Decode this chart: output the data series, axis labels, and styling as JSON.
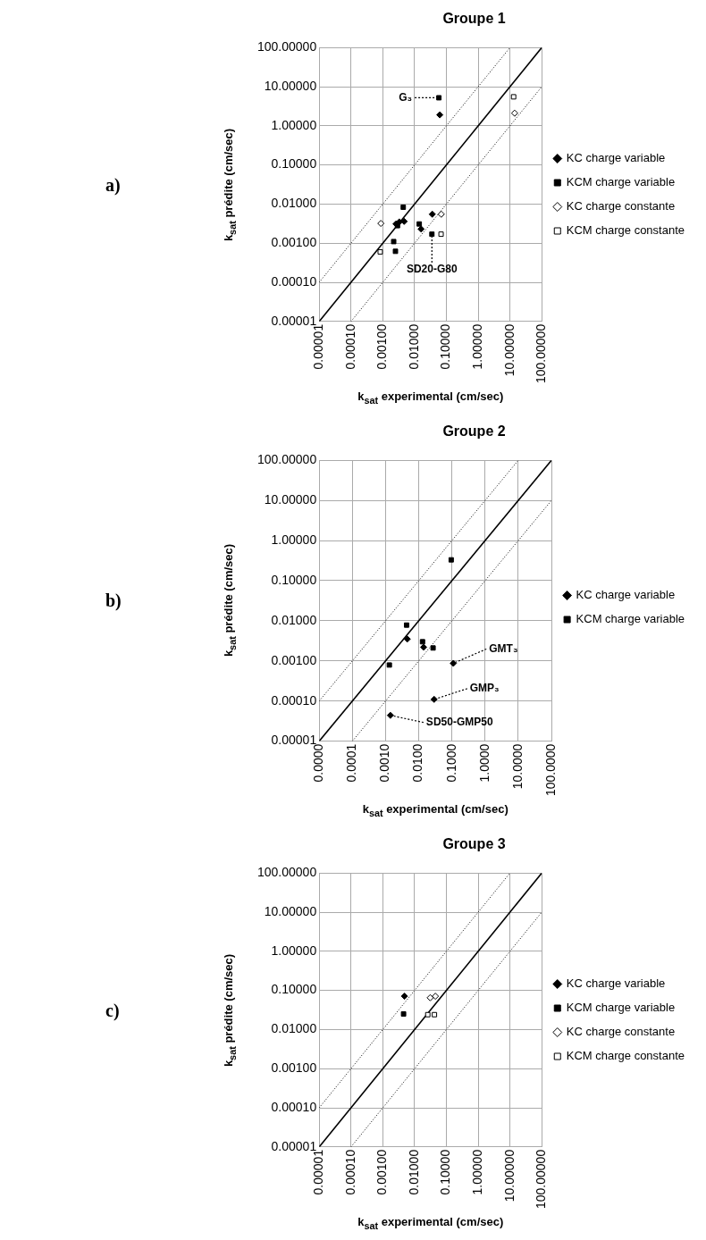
{
  "chart_data": [
    {
      "type": "scatter",
      "title": "Groupe 1",
      "xlabel": "k$_{sat}$ experimental (cm/sec)",
      "ylabel": "k$_{sat}$ prédite (cm/sec)",
      "log": "xy",
      "grid": true,
      "legend": "right",
      "xlim": [
        1e-05,
        100
      ],
      "ylim": [
        1e-05,
        100
      ],
      "xticks": [
        {
          "value": 1e-05,
          "label": "0.00001"
        },
        {
          "value": 0.0001,
          "label": "0.00010"
        },
        {
          "value": 0.001,
          "label": "0.00100"
        },
        {
          "value": 0.01,
          "label": "0.01000"
        },
        {
          "value": 0.1,
          "label": "0.10000"
        },
        {
          "value": 1,
          "label": "1.00000"
        },
        {
          "value": 10,
          "label": "10.00000"
        },
        {
          "value": 100,
          "label": "100.00000"
        }
      ],
      "yticks": [
        {
          "value": 1e-05,
          "label": "0.00001"
        },
        {
          "value": 0.0001,
          "label": "0.00010"
        },
        {
          "value": 0.001,
          "label": "0.00100"
        },
        {
          "value": 0.01,
          "label": "0.01000"
        },
        {
          "value": 0.1,
          "label": "0.10000"
        },
        {
          "value": 1,
          "label": "1.00000"
        },
        {
          "value": 10,
          "label": "10.00000"
        },
        {
          "value": 100,
          "label": "100.00000"
        }
      ],
      "series": [
        {
          "type": "line",
          "color": "#000000",
          "line_style": "solid",
          "marker": "none",
          "x": [
            1e-05,
            100
          ],
          "values": [
            1e-05,
            100
          ]
        },
        {
          "type": "line",
          "color": "#000000",
          "line_style": "dotted",
          "marker": "none",
          "x": [
            1e-05,
            10
          ],
          "values": [
            0.0001,
            100
          ]
        },
        {
          "type": "line",
          "color": "#000000",
          "line_style": "dotted",
          "marker": "none",
          "x": [
            0.0001,
            100
          ],
          "values": [
            1e-05,
            10
          ]
        },
        {
          "name": "KC charge variable",
          "color": "#000000",
          "marker": "diamond",
          "x": [
            0.0026,
            0.0033,
            0.0047,
            0.016,
            0.036,
            0.062
          ],
          "values": [
            0.0031,
            0.0035,
            0.0036,
            0.0023,
            0.0055,
            1.9
          ]
        },
        {
          "name": "KCM charge variable",
          "color": "#000000",
          "marker": "square",
          "x": [
            0.0044,
            0.0029,
            0.0022,
            0.0025,
            0.014,
            0.035,
            0.058
          ],
          "values": [
            0.0083,
            0.0028,
            0.0011,
            0.00062,
            0.0031,
            0.0017,
            5.2
          ]
        },
        {
          "name": "KC charge constante",
          "color": "#000000",
          "marker": "diamond-open",
          "x": [
            0.00087,
            0.069,
            14
          ],
          "values": [
            0.0032,
            0.0055,
            2.1
          ]
        },
        {
          "name": "KCM charge constante",
          "color": "#000000",
          "marker": "square-open",
          "x": [
            0.00083,
            0.068,
            13
          ],
          "values": [
            0.0006,
            0.0017,
            5.5
          ]
        }
      ],
      "annotations": [
        "a)",
        {
          "text": "G₃",
          "x": 0.058,
          "y": 5.2
        },
        {
          "text": "SD20-G80",
          "x": 0.035,
          "y": 0.0017
        }
      ]
    },
    {
      "type": "scatter",
      "title": "Groupe 2",
      "xlabel": "k$_{sat}$ experimental (cm/sec)",
      "ylabel": "k$_{sat}$ prédite (cm/sec)",
      "log": "xy",
      "grid": true,
      "legend": "right",
      "xlim": [
        1e-05,
        100
      ],
      "ylim": [
        1e-05,
        100
      ],
      "xticks": [
        {
          "value": 1e-05,
          "label": "0.0000"
        },
        {
          "value": 0.0001,
          "label": "0.0001"
        },
        {
          "value": 0.001,
          "label": "0.0010"
        },
        {
          "value": 0.01,
          "label": "0.0100"
        },
        {
          "value": 0.1,
          "label": "0.1000"
        },
        {
          "value": 1,
          "label": "1.0000"
        },
        {
          "value": 10,
          "label": "10.0000"
        },
        {
          "value": 100,
          "label": "100.0000"
        }
      ],
      "yticks": [
        {
          "value": 1e-05,
          "label": "0.00001"
        },
        {
          "value": 0.0001,
          "label": "0.00010"
        },
        {
          "value": 0.001,
          "label": "0.00100"
        },
        {
          "value": 0.01,
          "label": "0.01000"
        },
        {
          "value": 0.1,
          "label": "0.10000"
        },
        {
          "value": 1,
          "label": "1.00000"
        },
        {
          "value": 10,
          "label": "10.00000"
        },
        {
          "value": 100,
          "label": "100.00000"
        }
      ],
      "series": [
        {
          "type": "line",
          "color": "#000000",
          "line_style": "solid",
          "marker": "none",
          "x": [
            1e-05,
            100
          ],
          "values": [
            1e-05,
            100
          ]
        },
        {
          "type": "line",
          "color": "#000000",
          "line_style": "dotted",
          "marker": "none",
          "x": [
            1e-05,
            10
          ],
          "values": [
            0.0001,
            100
          ]
        },
        {
          "type": "line",
          "color": "#000000",
          "line_style": "dotted",
          "marker": "none",
          "x": [
            0.0001,
            100
          ],
          "values": [
            1e-05,
            10
          ]
        },
        {
          "name": "KC charge variable",
          "color": "#000000",
          "marker": "diamond",
          "x": [
            0.0045,
            0.014,
            0.11,
            0.029,
            0.0014
          ],
          "values": [
            0.0035,
            0.0022,
            0.00087,
            0.00011,
            4.4e-05
          ]
        },
        {
          "name": "KCM charge variable",
          "color": "#000000",
          "marker": "square",
          "x": [
            0.0043,
            0.0013,
            0.013,
            0.027,
            0.095
          ],
          "values": [
            0.0078,
            0.00079,
            0.003,
            0.0021,
            0.33
          ]
        }
      ],
      "annotations": [
        "b)",
        {
          "text": "GMT₃",
          "x": 0.11,
          "y": 0.00087
        },
        {
          "text": "GMP₃",
          "x": 0.029,
          "y": 0.00011
        },
        {
          "text": "SD50-GMP50",
          "x": 0.0014,
          "y": 4.4e-05
        }
      ]
    },
    {
      "type": "scatter",
      "title": "Groupe 3",
      "xlabel": "k$_{sat}$ experimental (cm/sec)",
      "ylabel": "k$_{sat}$ prédite (cm/sec)",
      "log": "xy",
      "grid": true,
      "legend": "right",
      "xlim": [
        1e-05,
        100
      ],
      "ylim": [
        1e-05,
        100
      ],
      "xticks": [
        {
          "value": 1e-05,
          "label": "0.00001"
        },
        {
          "value": 0.0001,
          "label": "0.00010"
        },
        {
          "value": 0.001,
          "label": "0.00100"
        },
        {
          "value": 0.01,
          "label": "0.01000"
        },
        {
          "value": 0.1,
          "label": "0.10000"
        },
        {
          "value": 1,
          "label": "1.00000"
        },
        {
          "value": 10,
          "label": "10.00000"
        },
        {
          "value": 100,
          "label": "100.00000"
        }
      ],
      "yticks": [
        {
          "value": 1e-05,
          "label": "0.00001"
        },
        {
          "value": 0.0001,
          "label": "0.00010"
        },
        {
          "value": 0.001,
          "label": "0.00100"
        },
        {
          "value": 0.01,
          "label": "0.01000"
        },
        {
          "value": 0.1,
          "label": "0.10000"
        },
        {
          "value": 1,
          "label": "1.00000"
        },
        {
          "value": 10,
          "label": "10.00000"
        },
        {
          "value": 100,
          "label": "100.00000"
        }
      ],
      "series": [
        {
          "type": "line",
          "color": "#000000",
          "line_style": "solid",
          "marker": "none",
          "x": [
            1e-05,
            100
          ],
          "values": [
            1e-05,
            100
          ]
        },
        {
          "type": "line",
          "color": "#000000",
          "line_style": "dotted",
          "marker": "none",
          "x": [
            1e-05,
            10
          ],
          "values": [
            0.0001,
            100
          ]
        },
        {
          "type": "line",
          "color": "#000000",
          "line_style": "dotted",
          "marker": "none",
          "x": [
            0.0001,
            100
          ],
          "values": [
            1e-05,
            10
          ]
        },
        {
          "name": "KC charge variable",
          "color": "#000000",
          "marker": "diamond",
          "x": [
            0.0048
          ],
          "values": [
            0.071
          ]
        },
        {
          "name": "KCM charge variable",
          "color": "#000000",
          "marker": "square",
          "x": [
            0.0045
          ],
          "values": [
            0.025
          ]
        },
        {
          "name": "KC charge constante",
          "color": "#000000",
          "marker": "diamond-open",
          "x": [
            0.031,
            0.045
          ],
          "values": [
            0.065,
            0.071
          ]
        },
        {
          "name": "KCM charge constante",
          "color": "#000000",
          "marker": "square-open",
          "x": [
            0.026,
            0.042
          ],
          "values": [
            0.024,
            0.024
          ]
        }
      ],
      "annotations": [
        "c)"
      ]
    }
  ]
}
